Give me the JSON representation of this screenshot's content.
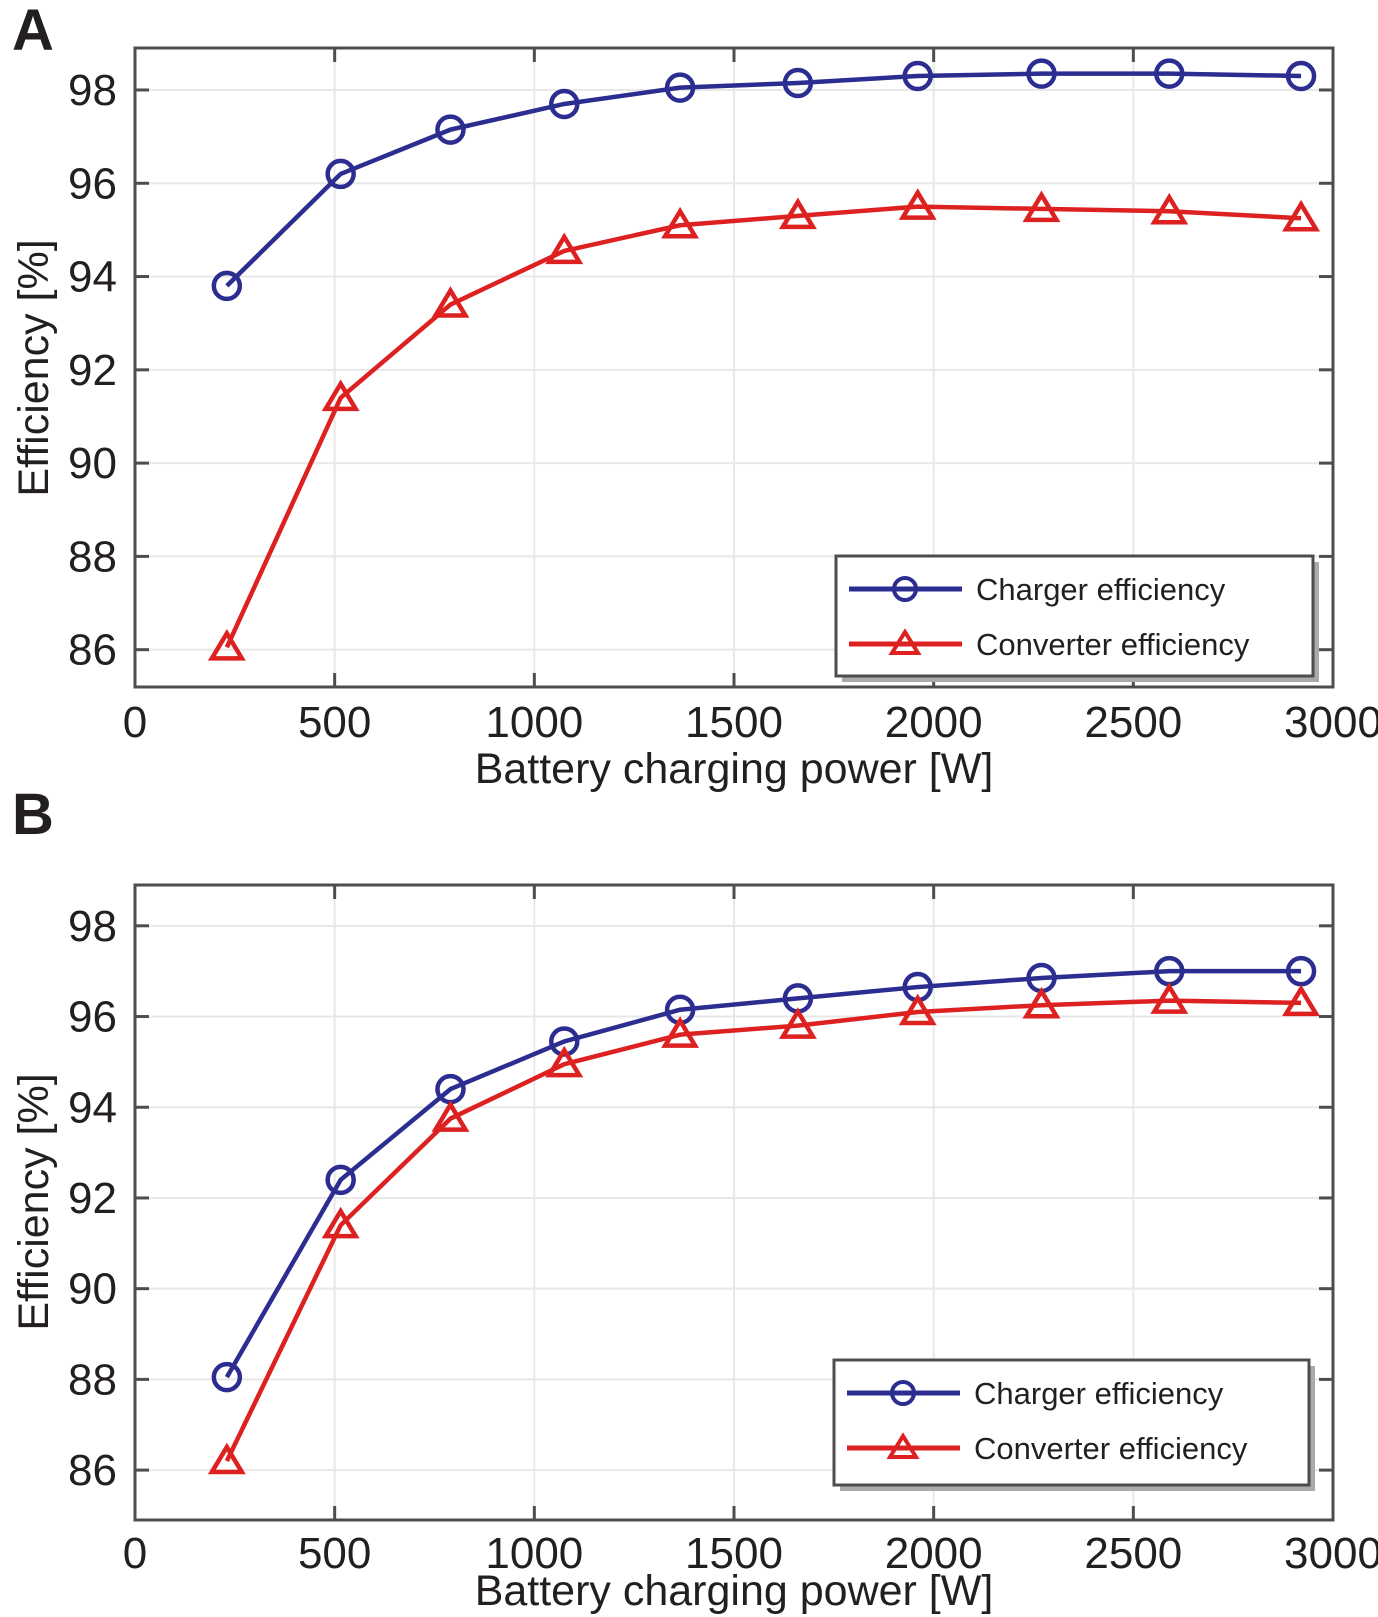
{
  "styles": {
    "background": "#ffffff",
    "grid_color": "#e8e8e8",
    "axis_color": "#4d4d4d",
    "text_color": "#231f20",
    "legend_shadow_color": "#aaaaaa",
    "charger_color": "#2b2d90",
    "converter_color": "#dd2020"
  },
  "panels": [
    {
      "label": "A",
      "xlabel": "Battery charging power [W]",
      "ylabel": "Efficiency [%]"
    },
    {
      "label": "B",
      "xlabel": "Battery charging power [W]",
      "ylabel": "Efficiency [%]"
    }
  ],
  "chart_data": [
    {
      "type": "line",
      "panel": "A",
      "xlabel": "Battery charging power [W]",
      "ylabel": "Efficiency [%]",
      "x": [
        230,
        515,
        790,
        1075,
        1365,
        1660,
        1960,
        2270,
        2590,
        2920
      ],
      "series": [
        {
          "name": "Charger efficiency",
          "marker": "circle",
          "color": "#2b2d90",
          "values": [
            93.8,
            96.2,
            97.15,
            97.7,
            98.05,
            98.15,
            98.3,
            98.35,
            98.35,
            98.3
          ]
        },
        {
          "name": "Converter efficiency",
          "marker": "triangle",
          "color": "#dd2020",
          "values": [
            86.05,
            91.4,
            93.4,
            94.55,
            95.1,
            95.3,
            95.5,
            95.45,
            95.4,
            95.25
          ]
        }
      ],
      "xticks": [
        0,
        500,
        1000,
        1500,
        2000,
        2500,
        3000
      ],
      "yticks": [
        86,
        88,
        90,
        92,
        94,
        96,
        98
      ],
      "xlim": [
        0,
        3000
      ],
      "ylim": [
        85.2,
        98.9
      ],
      "grid": true,
      "legend_position": "bottom-right"
    },
    {
      "type": "line",
      "panel": "B",
      "xlabel": "Battery charging power [W]",
      "ylabel": "Efficiency [%]",
      "x": [
        230,
        515,
        790,
        1075,
        1365,
        1660,
        1960,
        2270,
        2590,
        2920
      ],
      "series": [
        {
          "name": "Charger efficiency",
          "marker": "circle",
          "color": "#2b2d90",
          "values": [
            88.05,
            92.4,
            94.4,
            95.45,
            96.15,
            96.4,
            96.65,
            96.85,
            97.0,
            97.0
          ]
        },
        {
          "name": "Converter efficiency",
          "marker": "triangle",
          "color": "#dd2020",
          "values": [
            86.2,
            91.4,
            93.75,
            94.95,
            95.6,
            95.8,
            96.1,
            96.25,
            96.35,
            96.3
          ]
        }
      ],
      "xticks": [
        0,
        500,
        1000,
        1500,
        2000,
        2500,
        3000
      ],
      "yticks": [
        86,
        88,
        90,
        92,
        94,
        96,
        98
      ],
      "xlim": [
        0,
        3000
      ],
      "ylim": [
        84.9,
        98.9
      ],
      "grid": true,
      "legend_position": "bottom-right"
    }
  ]
}
